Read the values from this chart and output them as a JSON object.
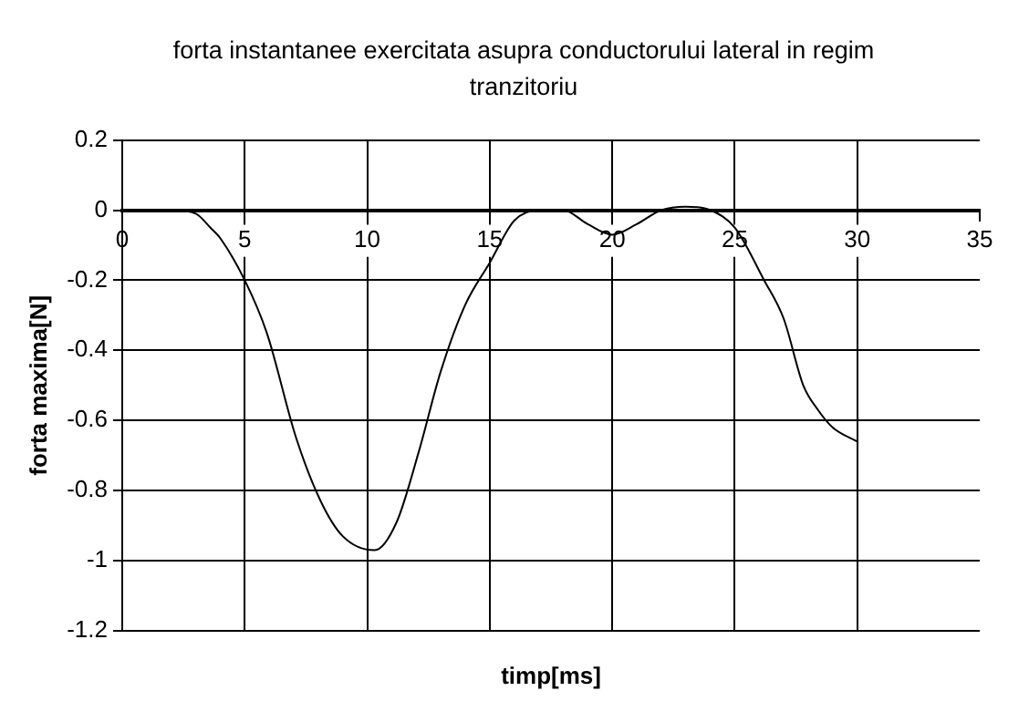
{
  "chart_data": {
    "type": "line",
    "title": "forta instantanee exercitata asupra conductorului lateral in regim tranzitoriu",
    "xlabel": "timp[ms]",
    "ylabel": "forta maxima[N]",
    "series": [
      {
        "color": "#000000",
        "x": [
          0,
          1,
          2,
          3,
          3.6,
          4,
          5,
          5.9,
          7.1,
          8.1,
          9,
          10.3,
          11.2,
          12.1,
          13,
          14,
          15,
          16,
          17,
          18,
          19,
          20,
          21,
          22,
          23,
          24,
          25,
          26.2,
          27,
          27.8,
          28.4,
          29,
          30
        ],
        "values": [
          0,
          0,
          0,
          -0.01,
          -0.05,
          -0.08,
          -0.2,
          -0.35,
          -0.65,
          -0.83,
          -0.93,
          -0.97,
          -0.89,
          -0.69,
          -0.46,
          -0.27,
          -0.15,
          -0.03,
          0,
          0,
          -0.04,
          -0.07,
          -0.04,
          0,
          0.01,
          0,
          -0.05,
          -0.2,
          -0.31,
          -0.5,
          -0.57,
          -0.62,
          -0.66
        ]
      }
    ],
    "xlim": [
      0,
      35
    ],
    "xticks": [
      0,
      5,
      10,
      15,
      20,
      25,
      30,
      35
    ],
    "ylim": [
      -1.2,
      0.2
    ],
    "yticks": [
      -1.2,
      -1,
      -0.8,
      -0.6,
      -0.4,
      -0.2,
      0,
      0.2
    ],
    "grid": true,
    "legend": false,
    "marker": "none",
    "line_style": "solid"
  }
}
